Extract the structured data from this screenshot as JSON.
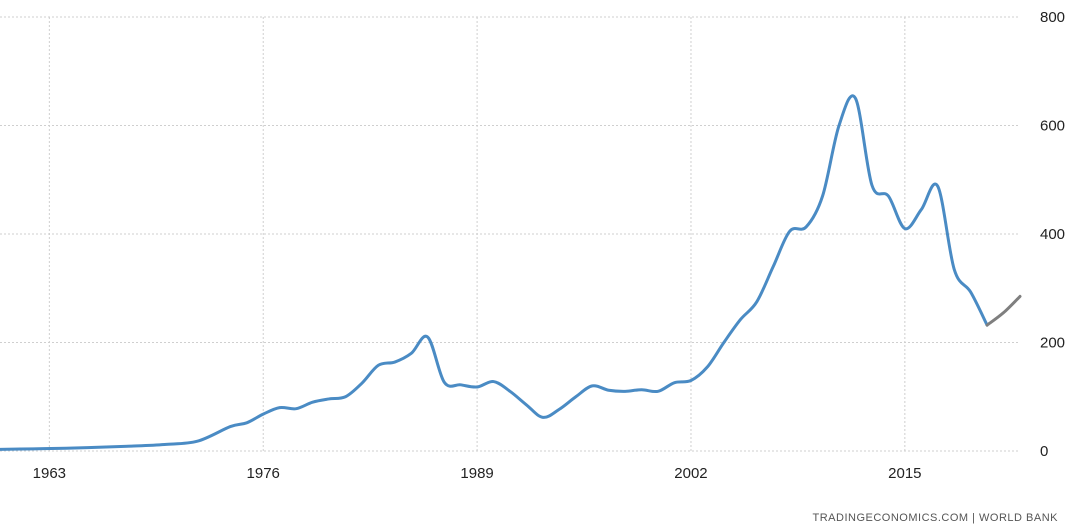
{
  "chart_data": {
    "type": "line",
    "title": "",
    "xlabel": "",
    "ylabel": "",
    "xlim": [
      1960,
      2022
    ],
    "ylim": [
      0,
      800
    ],
    "x_ticks": [
      1963,
      1976,
      1989,
      2002,
      2015
    ],
    "y_ticks": [
      0,
      200,
      400,
      600,
      800
    ],
    "grid": true,
    "series": [
      {
        "color": "#4a8bc4",
        "x": [
          1960,
          1962,
          1964,
          1966,
          1968,
          1970,
          1972,
          1974,
          1975,
          1976,
          1977,
          1978,
          1979,
          1980,
          1981,
          1982,
          1983,
          1984,
          1985,
          1986,
          1987,
          1988,
          1989,
          1990,
          1991,
          1992,
          1993,
          1994,
          1995,
          1996,
          1997,
          1998,
          1999,
          2000,
          2001,
          2002,
          2003,
          2004,
          2005,
          2006,
          2007,
          2008,
          2009,
          2010,
          2011,
          2012,
          2013,
          2014,
          2015,
          2016,
          2017,
          2018,
          2019,
          2020
        ],
        "values": [
          3,
          4,
          5,
          7,
          9,
          12,
          18,
          45,
          52,
          68,
          80,
          78,
          90,
          96,
          100,
          125,
          158,
          164,
          180,
          210,
          127,
          122,
          118,
          128,
          110,
          85,
          62,
          77,
          100,
          120,
          112,
          110,
          113,
          110,
          126,
          130,
          155,
          200,
          242,
          275,
          340,
          405,
          413,
          470,
          600,
          650,
          490,
          470,
          410,
          445,
          488,
          335,
          293,
          232
        ]
      },
      {
        "color": "#7f7f7f",
        "x": [
          2020,
          2021,
          2022
        ],
        "values": [
          232,
          255,
          285
        ]
      }
    ]
  },
  "source_label": "TRADINGECONOMICS.COM  |  WORLD BANK"
}
